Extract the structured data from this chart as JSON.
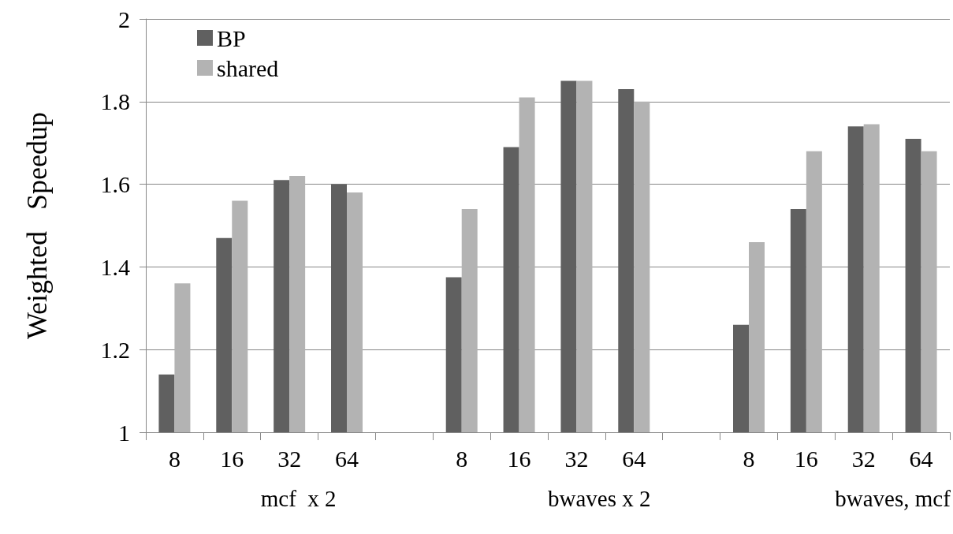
{
  "chart_data": {
    "type": "bar",
    "ylabel": "Weighted   Speedup",
    "categories": [
      "8",
      "16",
      "32",
      "64",
      null,
      "8",
      "16",
      "32",
      "64",
      null,
      "8",
      "16",
      "32",
      "64"
    ],
    "series": [
      {
        "name": "BP",
        "color": "#606060",
        "values": [
          1.14,
          1.47,
          1.61,
          1.6,
          null,
          1.375,
          1.69,
          1.85,
          1.83,
          null,
          1.26,
          1.54,
          1.74,
          1.71
        ]
      },
      {
        "name": "shared",
        "color": "#b3b3b3",
        "values": [
          1.36,
          1.56,
          1.62,
          1.58,
          null,
          1.54,
          1.81,
          1.85,
          1.8,
          null,
          1.46,
          1.68,
          1.745,
          1.68
        ]
      }
    ],
    "annotations": [
      "mcf  x 2",
      "bwaves x 2",
      "bwaves, mcf"
    ],
    "ylim": [
      1,
      2
    ],
    "yticks": [
      1,
      1.2,
      1.4,
      1.6,
      1.8,
      2
    ],
    "grid": "y",
    "legend": "top left"
  }
}
